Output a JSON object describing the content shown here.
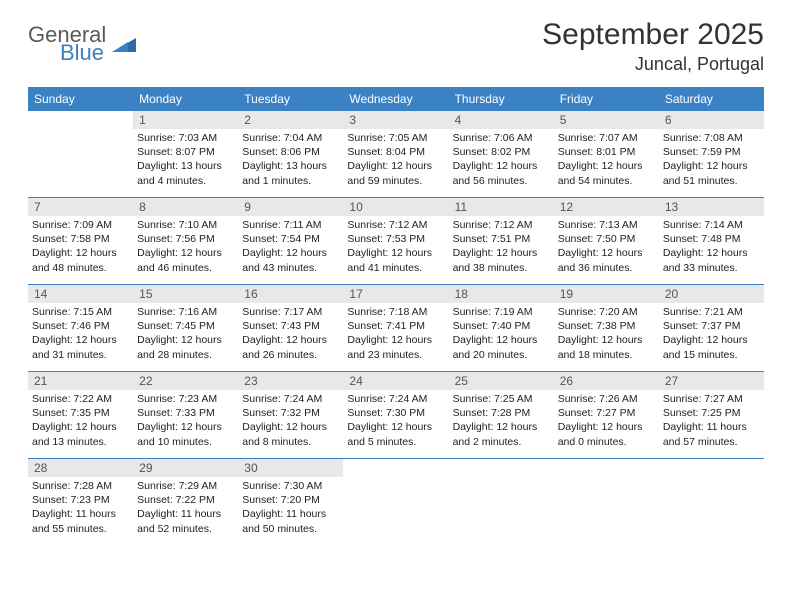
{
  "brand": {
    "top": "General",
    "bottom": "Blue"
  },
  "title": "September 2025",
  "location": "Juncal, Portugal",
  "colors": {
    "header_bg": "#3b82c4",
    "header_text": "#ffffff",
    "daynum_bg": "#e8e8e8",
    "daynum_text": "#555555",
    "row_border": "#3b82c4",
    "body_text": "#222222",
    "title_text": "#333333",
    "brand_gray": "#5a5a5a",
    "brand_blue": "#3b82c4",
    "page_bg": "#ffffff"
  },
  "dow": [
    "Sunday",
    "Monday",
    "Tuesday",
    "Wednesday",
    "Thursday",
    "Friday",
    "Saturday"
  ],
  "weeks": [
    [
      {
        "n": "",
        "sr": "",
        "ss": "",
        "dl": ""
      },
      {
        "n": "1",
        "sr": "Sunrise: 7:03 AM",
        "ss": "Sunset: 8:07 PM",
        "dl": "Daylight: 13 hours and 4 minutes."
      },
      {
        "n": "2",
        "sr": "Sunrise: 7:04 AM",
        "ss": "Sunset: 8:06 PM",
        "dl": "Daylight: 13 hours and 1 minutes."
      },
      {
        "n": "3",
        "sr": "Sunrise: 7:05 AM",
        "ss": "Sunset: 8:04 PM",
        "dl": "Daylight: 12 hours and 59 minutes."
      },
      {
        "n": "4",
        "sr": "Sunrise: 7:06 AM",
        "ss": "Sunset: 8:02 PM",
        "dl": "Daylight: 12 hours and 56 minutes."
      },
      {
        "n": "5",
        "sr": "Sunrise: 7:07 AM",
        "ss": "Sunset: 8:01 PM",
        "dl": "Daylight: 12 hours and 54 minutes."
      },
      {
        "n": "6",
        "sr": "Sunrise: 7:08 AM",
        "ss": "Sunset: 7:59 PM",
        "dl": "Daylight: 12 hours and 51 minutes."
      }
    ],
    [
      {
        "n": "7",
        "sr": "Sunrise: 7:09 AM",
        "ss": "Sunset: 7:58 PM",
        "dl": "Daylight: 12 hours and 48 minutes."
      },
      {
        "n": "8",
        "sr": "Sunrise: 7:10 AM",
        "ss": "Sunset: 7:56 PM",
        "dl": "Daylight: 12 hours and 46 minutes."
      },
      {
        "n": "9",
        "sr": "Sunrise: 7:11 AM",
        "ss": "Sunset: 7:54 PM",
        "dl": "Daylight: 12 hours and 43 minutes."
      },
      {
        "n": "10",
        "sr": "Sunrise: 7:12 AM",
        "ss": "Sunset: 7:53 PM",
        "dl": "Daylight: 12 hours and 41 minutes."
      },
      {
        "n": "11",
        "sr": "Sunrise: 7:12 AM",
        "ss": "Sunset: 7:51 PM",
        "dl": "Daylight: 12 hours and 38 minutes."
      },
      {
        "n": "12",
        "sr": "Sunrise: 7:13 AM",
        "ss": "Sunset: 7:50 PM",
        "dl": "Daylight: 12 hours and 36 minutes."
      },
      {
        "n": "13",
        "sr": "Sunrise: 7:14 AM",
        "ss": "Sunset: 7:48 PM",
        "dl": "Daylight: 12 hours and 33 minutes."
      }
    ],
    [
      {
        "n": "14",
        "sr": "Sunrise: 7:15 AM",
        "ss": "Sunset: 7:46 PM",
        "dl": "Daylight: 12 hours and 31 minutes."
      },
      {
        "n": "15",
        "sr": "Sunrise: 7:16 AM",
        "ss": "Sunset: 7:45 PM",
        "dl": "Daylight: 12 hours and 28 minutes."
      },
      {
        "n": "16",
        "sr": "Sunrise: 7:17 AM",
        "ss": "Sunset: 7:43 PM",
        "dl": "Daylight: 12 hours and 26 minutes."
      },
      {
        "n": "17",
        "sr": "Sunrise: 7:18 AM",
        "ss": "Sunset: 7:41 PM",
        "dl": "Daylight: 12 hours and 23 minutes."
      },
      {
        "n": "18",
        "sr": "Sunrise: 7:19 AM",
        "ss": "Sunset: 7:40 PM",
        "dl": "Daylight: 12 hours and 20 minutes."
      },
      {
        "n": "19",
        "sr": "Sunrise: 7:20 AM",
        "ss": "Sunset: 7:38 PM",
        "dl": "Daylight: 12 hours and 18 minutes."
      },
      {
        "n": "20",
        "sr": "Sunrise: 7:21 AM",
        "ss": "Sunset: 7:37 PM",
        "dl": "Daylight: 12 hours and 15 minutes."
      }
    ],
    [
      {
        "n": "21",
        "sr": "Sunrise: 7:22 AM",
        "ss": "Sunset: 7:35 PM",
        "dl": "Daylight: 12 hours and 13 minutes."
      },
      {
        "n": "22",
        "sr": "Sunrise: 7:23 AM",
        "ss": "Sunset: 7:33 PM",
        "dl": "Daylight: 12 hours and 10 minutes."
      },
      {
        "n": "23",
        "sr": "Sunrise: 7:24 AM",
        "ss": "Sunset: 7:32 PM",
        "dl": "Daylight: 12 hours and 8 minutes."
      },
      {
        "n": "24",
        "sr": "Sunrise: 7:24 AM",
        "ss": "Sunset: 7:30 PM",
        "dl": "Daylight: 12 hours and 5 minutes."
      },
      {
        "n": "25",
        "sr": "Sunrise: 7:25 AM",
        "ss": "Sunset: 7:28 PM",
        "dl": "Daylight: 12 hours and 2 minutes."
      },
      {
        "n": "26",
        "sr": "Sunrise: 7:26 AM",
        "ss": "Sunset: 7:27 PM",
        "dl": "Daylight: 12 hours and 0 minutes."
      },
      {
        "n": "27",
        "sr": "Sunrise: 7:27 AM",
        "ss": "Sunset: 7:25 PM",
        "dl": "Daylight: 11 hours and 57 minutes."
      }
    ],
    [
      {
        "n": "28",
        "sr": "Sunrise: 7:28 AM",
        "ss": "Sunset: 7:23 PM",
        "dl": "Daylight: 11 hours and 55 minutes."
      },
      {
        "n": "29",
        "sr": "Sunrise: 7:29 AM",
        "ss": "Sunset: 7:22 PM",
        "dl": "Daylight: 11 hours and 52 minutes."
      },
      {
        "n": "30",
        "sr": "Sunrise: 7:30 AM",
        "ss": "Sunset: 7:20 PM",
        "dl": "Daylight: 11 hours and 50 minutes."
      },
      {
        "n": "",
        "sr": "",
        "ss": "",
        "dl": ""
      },
      {
        "n": "",
        "sr": "",
        "ss": "",
        "dl": ""
      },
      {
        "n": "",
        "sr": "",
        "ss": "",
        "dl": ""
      },
      {
        "n": "",
        "sr": "",
        "ss": "",
        "dl": ""
      }
    ]
  ]
}
